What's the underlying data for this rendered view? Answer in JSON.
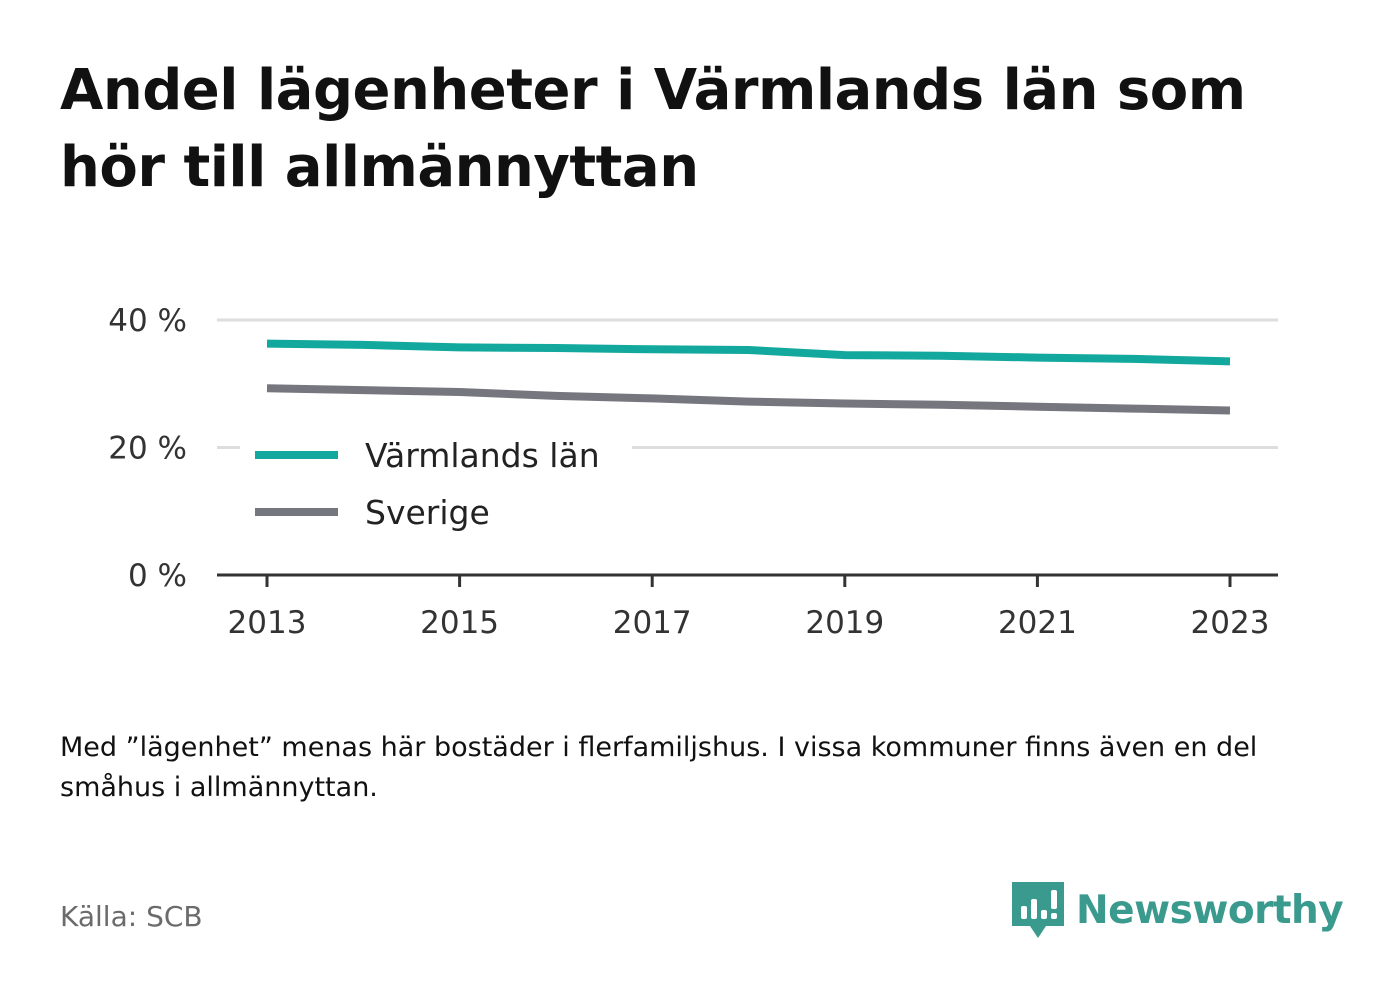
{
  "title": "Andel lägenheter i Värmlands län som hör till allmännyttan",
  "note": "Med ”lägenhet” menas här bostäder i flerfamiljshus. I vissa kommuner finns även en del småhus i allmännyttan.",
  "source": "Källa: SCB",
  "brand": {
    "name": "Newsworthy",
    "icon": "newsworthy-logo-icon",
    "color": "#3a9a8e"
  },
  "chart_data": {
    "type": "line",
    "x": [
      2013,
      2014,
      2015,
      2016,
      2017,
      2018,
      2019,
      2020,
      2021,
      2022,
      2023
    ],
    "series": [
      {
        "name": "Värmlands län",
        "color": "#13a89e",
        "values": [
          36.3,
          36.1,
          35.7,
          35.6,
          35.4,
          35.3,
          34.5,
          34.4,
          34.1,
          33.9,
          33.5
        ]
      },
      {
        "name": "Sverige",
        "color": "#76767e",
        "values": [
          29.3,
          29.0,
          28.7,
          28.1,
          27.7,
          27.2,
          26.9,
          26.7,
          26.4,
          26.1,
          25.8
        ]
      }
    ],
    "ylim": [
      0,
      40
    ],
    "y_ticks": [
      0,
      20,
      40
    ],
    "y_tick_labels": [
      "0 %",
      "20 %",
      "40 %"
    ],
    "x_ticks": [
      2013,
      2015,
      2017,
      2019,
      2021,
      2023
    ],
    "x_tick_labels": [
      "2013",
      "2015",
      "2017",
      "2019",
      "2021",
      "2023"
    ],
    "grid": "horizontal",
    "legend_position": "bottom-left",
    "xlabel": "",
    "ylabel": ""
  }
}
